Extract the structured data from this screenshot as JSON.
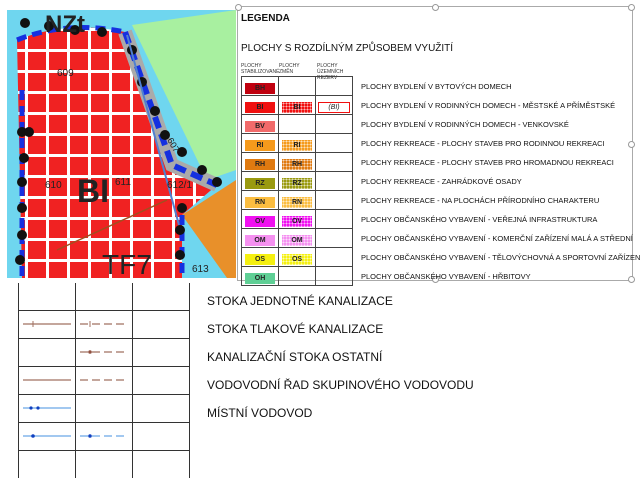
{
  "map": {
    "labels": {
      "zone": "BI",
      "zone2": "TF7",
      "top": "NZt",
      "p609": "609",
      "p610": "610",
      "p611": "611",
      "p612": "612/1",
      "p607": "607",
      "p613": "613"
    }
  },
  "legend": {
    "title": "LEGENDA",
    "subtitle": "PLOCHY S ROZDÍLNÝM ZPŮSOBEM VYUŽITÍ",
    "columns": [
      "PLOCHY STABILIZOVANÉ",
      "PLOCHY ZMĚN",
      "PLOCHY ÚZEMNÍCH REZERV"
    ],
    "rows": [
      {
        "code": "BH",
        "color": "#c0000f",
        "change": "",
        "reserve": "",
        "label": "PLOCHY BYDLENÍ V BYTOVÝCH DOMECH"
      },
      {
        "code": "BI",
        "color": "#f01010",
        "change": "BI",
        "reserve": "(BI)",
        "label": "PLOCHY BYDLENÍ V RODINNÝCH DOMECH - MĚSTSKÉ A PŘÍMĚSTSKÉ"
      },
      {
        "code": "BV",
        "color": "#f26b6b",
        "change": "",
        "reserve": "",
        "label": "PLOCHY BYDLENÍ V RODINNÝCH DOMECH - VENKOVSKÉ"
      },
      {
        "code": "RI",
        "color": "#f59a1c",
        "change": "RI",
        "reserve": "",
        "label": "PLOCHY REKREACE - PLOCHY STAVEB PRO RODINNOU REKREACI"
      },
      {
        "code": "RH",
        "color": "#e07a10",
        "change": "RH",
        "reserve": "",
        "label": "PLOCHY REKREACE - PLOCHY STAVEB PRO HROMADNOU REKREACI"
      },
      {
        "code": "RZ",
        "color": "#9a9a10",
        "change": "RZ",
        "reserve": "",
        "label": "PLOCHY REKREACE - ZAHRÁDKOVÉ OSADY"
      },
      {
        "code": "RN",
        "color": "#fbbd40",
        "change": "RN",
        "reserve": "",
        "label": "PLOCHY REKREACE - NA PLOCHÁCH PŘÍRODNÍHO CHARAKTERU"
      },
      {
        "code": "OV",
        "color": "#f010f0",
        "change": "OV",
        "reserve": "",
        "label": "PLOCHY OBČANSKÉHO VYBAVENÍ - VEŘEJNÁ INFRASTRUKTURA"
      },
      {
        "code": "OM",
        "color": "#f590f0",
        "change": "OM",
        "reserve": "",
        "label": "PLOCHY OBČANSKÉHO VYBAVENÍ - KOMERČNÍ ZAŘÍZENÍ MALÁ A STŘEDNÍ"
      },
      {
        "code": "OS",
        "color": "#f5f010",
        "change": "OS",
        "reserve": "",
        "label": "PLOCHY OBČANSKÉHO VYBAVENÍ - TĚLOVÝCHOVNÁ A SPORTOVNÍ ZAŘÍZENÍ"
      },
      {
        "code": "OH",
        "color": "#5fcf95",
        "change": "",
        "reserve": "",
        "label": "PLOCHY OBČANSKÉHO VYBAVENÍ - HŘBITOVY"
      }
    ]
  },
  "lines": [
    {
      "label": "STOKA JEDNOTNÉ KANALIZACE",
      "color": "#a07060"
    },
    {
      "label": "STOKA TLAKOVÉ KANALIZACE",
      "color": "#a07060"
    },
    {
      "label": "KANALIZAČNÍ STOKA OSTATNÍ",
      "color": "#a07060"
    },
    {
      "label": "VODOVODNÍ ŘAD SKUPINOVÉHO VODOVODU",
      "color": "#6aa8e8"
    },
    {
      "label": "MÍSTNÍ VODOVOD",
      "color": "#6aa8e8"
    }
  ]
}
